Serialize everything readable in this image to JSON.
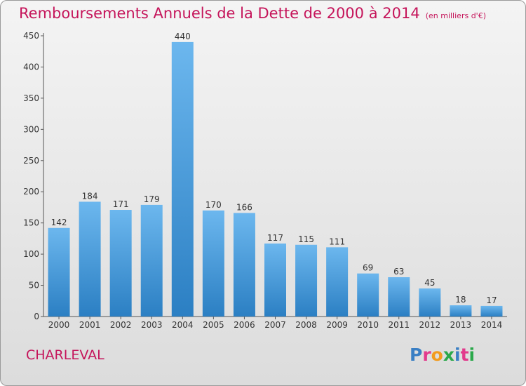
{
  "header": {
    "title": "Remboursements Annuels de la Dette de 2000 à 2014",
    "unit": "(en milliers d'€)"
  },
  "place": "CHARLEVAL",
  "logo": {
    "text": "Proxiti",
    "colors": [
      "#3a7fc4",
      "#e23a8c",
      "#f29b1e",
      "#2aa84a",
      "#3a7fc4",
      "#e23a8c",
      "#2aa84a"
    ]
  },
  "colors": {
    "title": "#c5145a",
    "bar_top": "#6cb7ee",
    "bar_bottom": "#2b7fc3",
    "axis": "#555555"
  },
  "chart_data": {
    "type": "bar",
    "categories": [
      "2000",
      "2001",
      "2002",
      "2003",
      "2004",
      "2005",
      "2006",
      "2007",
      "2008",
      "2009",
      "2010",
      "2011",
      "2012",
      "2013",
      "2014"
    ],
    "values": [
      142,
      184,
      171,
      179,
      440,
      170,
      166,
      117,
      115,
      111,
      69,
      63,
      45,
      18,
      17
    ],
    "ylim": [
      0,
      450
    ],
    "yticks": [
      0,
      50,
      100,
      150,
      200,
      250,
      300,
      350,
      400,
      450
    ],
    "grid": false,
    "legend": "none"
  }
}
